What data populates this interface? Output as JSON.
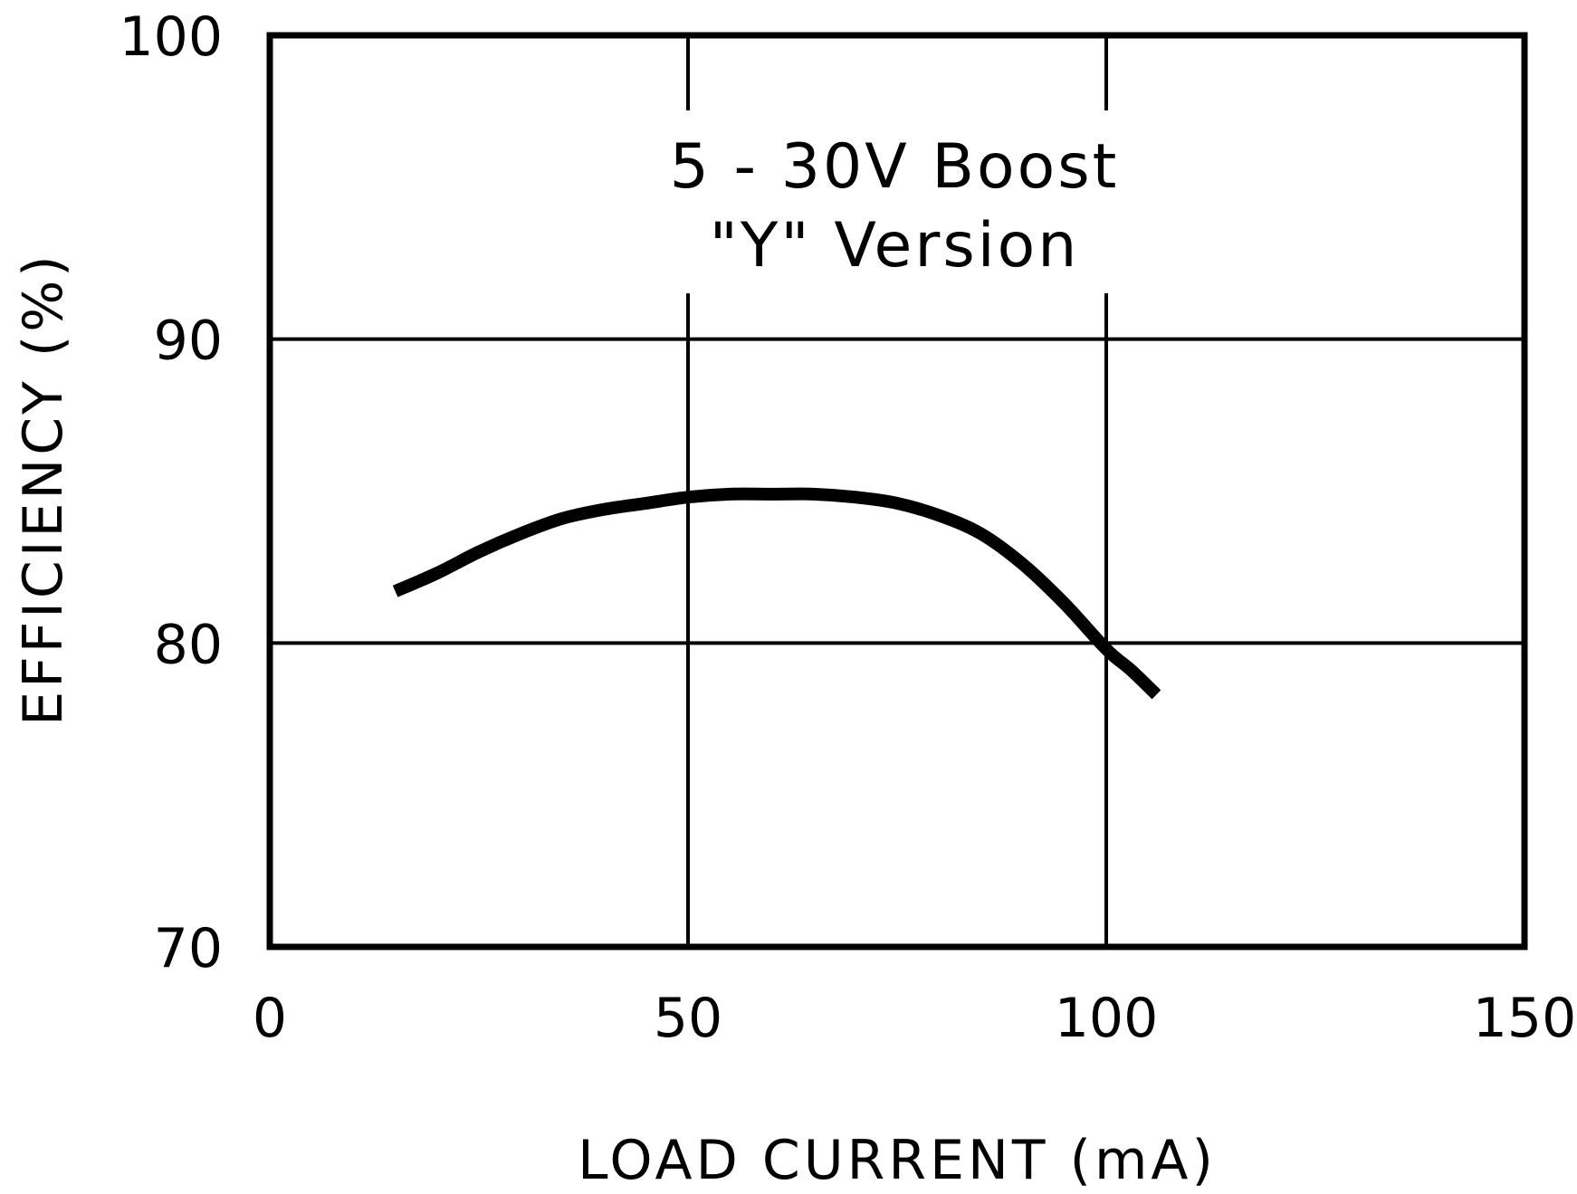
{
  "chart_data": {
    "type": "line",
    "xlabel": "LOAD CURRENT (mA)",
    "ylabel": "EFFICIENCY (%)",
    "xlim": [
      0,
      150
    ],
    "ylim": [
      70,
      100
    ],
    "xticks": [
      "0",
      "50",
      "100",
      "150"
    ],
    "yticks": [
      "70",
      "80",
      "90",
      "100"
    ],
    "x_tick_values": [
      0,
      50,
      100,
      150
    ],
    "y_tick_values": [
      70,
      80,
      90,
      100
    ],
    "grid": true,
    "annotation": [
      "5 - 30V Boost",
      "\"Y\" Version"
    ],
    "series": [
      {
        "x": [
          15,
          20,
          25,
          30,
          35,
          40,
          45,
          50,
          55,
          60,
          65,
          70,
          75,
          80,
          85,
          90,
          95,
          100,
          103,
          106
        ],
        "y": [
          81.7,
          82.3,
          83.0,
          83.6,
          84.1,
          84.4,
          84.6,
          84.8,
          84.9,
          84.9,
          84.9,
          84.8,
          84.6,
          84.2,
          83.6,
          82.6,
          81.3,
          79.8,
          79.1,
          78.3
        ]
      }
    ],
    "colors": {
      "line": "#000000",
      "grid": "#000000",
      "frame": "#000000"
    }
  }
}
